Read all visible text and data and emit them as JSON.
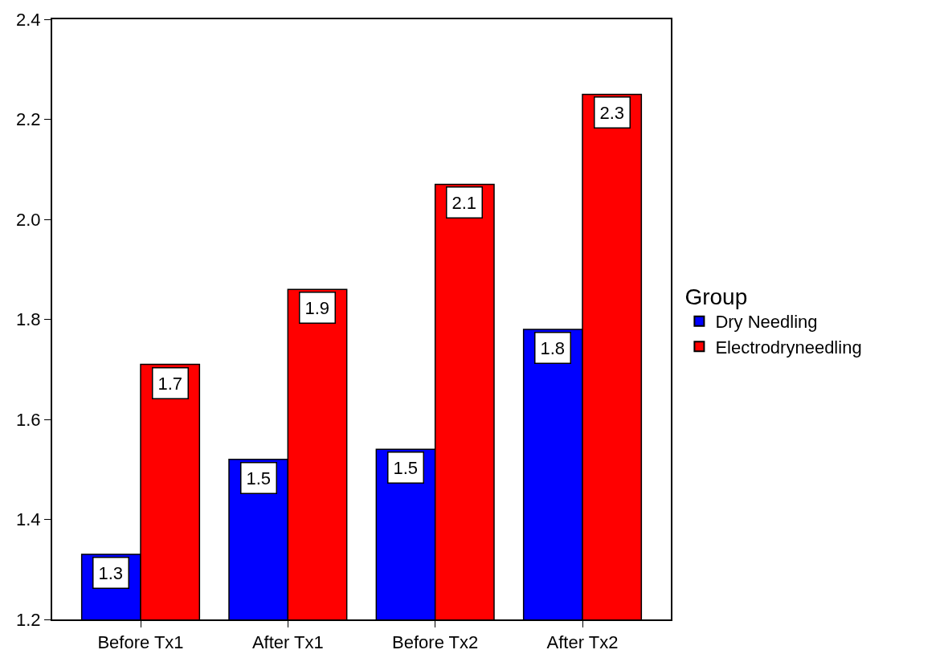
{
  "chart_data": {
    "type": "bar",
    "categories": [
      "Before Tx1",
      "After Tx1",
      "Before Tx2",
      "After Tx2"
    ],
    "series": [
      {
        "name": "Dry Needling",
        "color": "#0000ff",
        "values": [
          1.33,
          1.52,
          1.54,
          1.78
        ],
        "value_labels": [
          "1.3",
          "1.5",
          "1.5",
          "1.8"
        ]
      },
      {
        "name": "Electrodryneedling",
        "color": "#ff0000",
        "values": [
          1.71,
          1.86,
          2.07,
          2.25
        ],
        "value_labels": [
          "1.7",
          "1.9",
          "2.1",
          "2.3"
        ]
      }
    ],
    "legend_title": "Group",
    "legend": "right",
    "ylim": [
      1.2,
      2.4
    ],
    "yticks": [
      {
        "value": 1.2,
        "label": "1.2"
      },
      {
        "value": 1.4,
        "label": "1.4"
      },
      {
        "value": 1.6,
        "label": "1.6"
      },
      {
        "value": 1.8,
        "label": "1.8"
      },
      {
        "value": 2.0,
        "label": "2.0"
      },
      {
        "value": 2.2,
        "label": "2.2"
      },
      {
        "value": 2.4,
        "label": "2.4"
      }
    ]
  }
}
